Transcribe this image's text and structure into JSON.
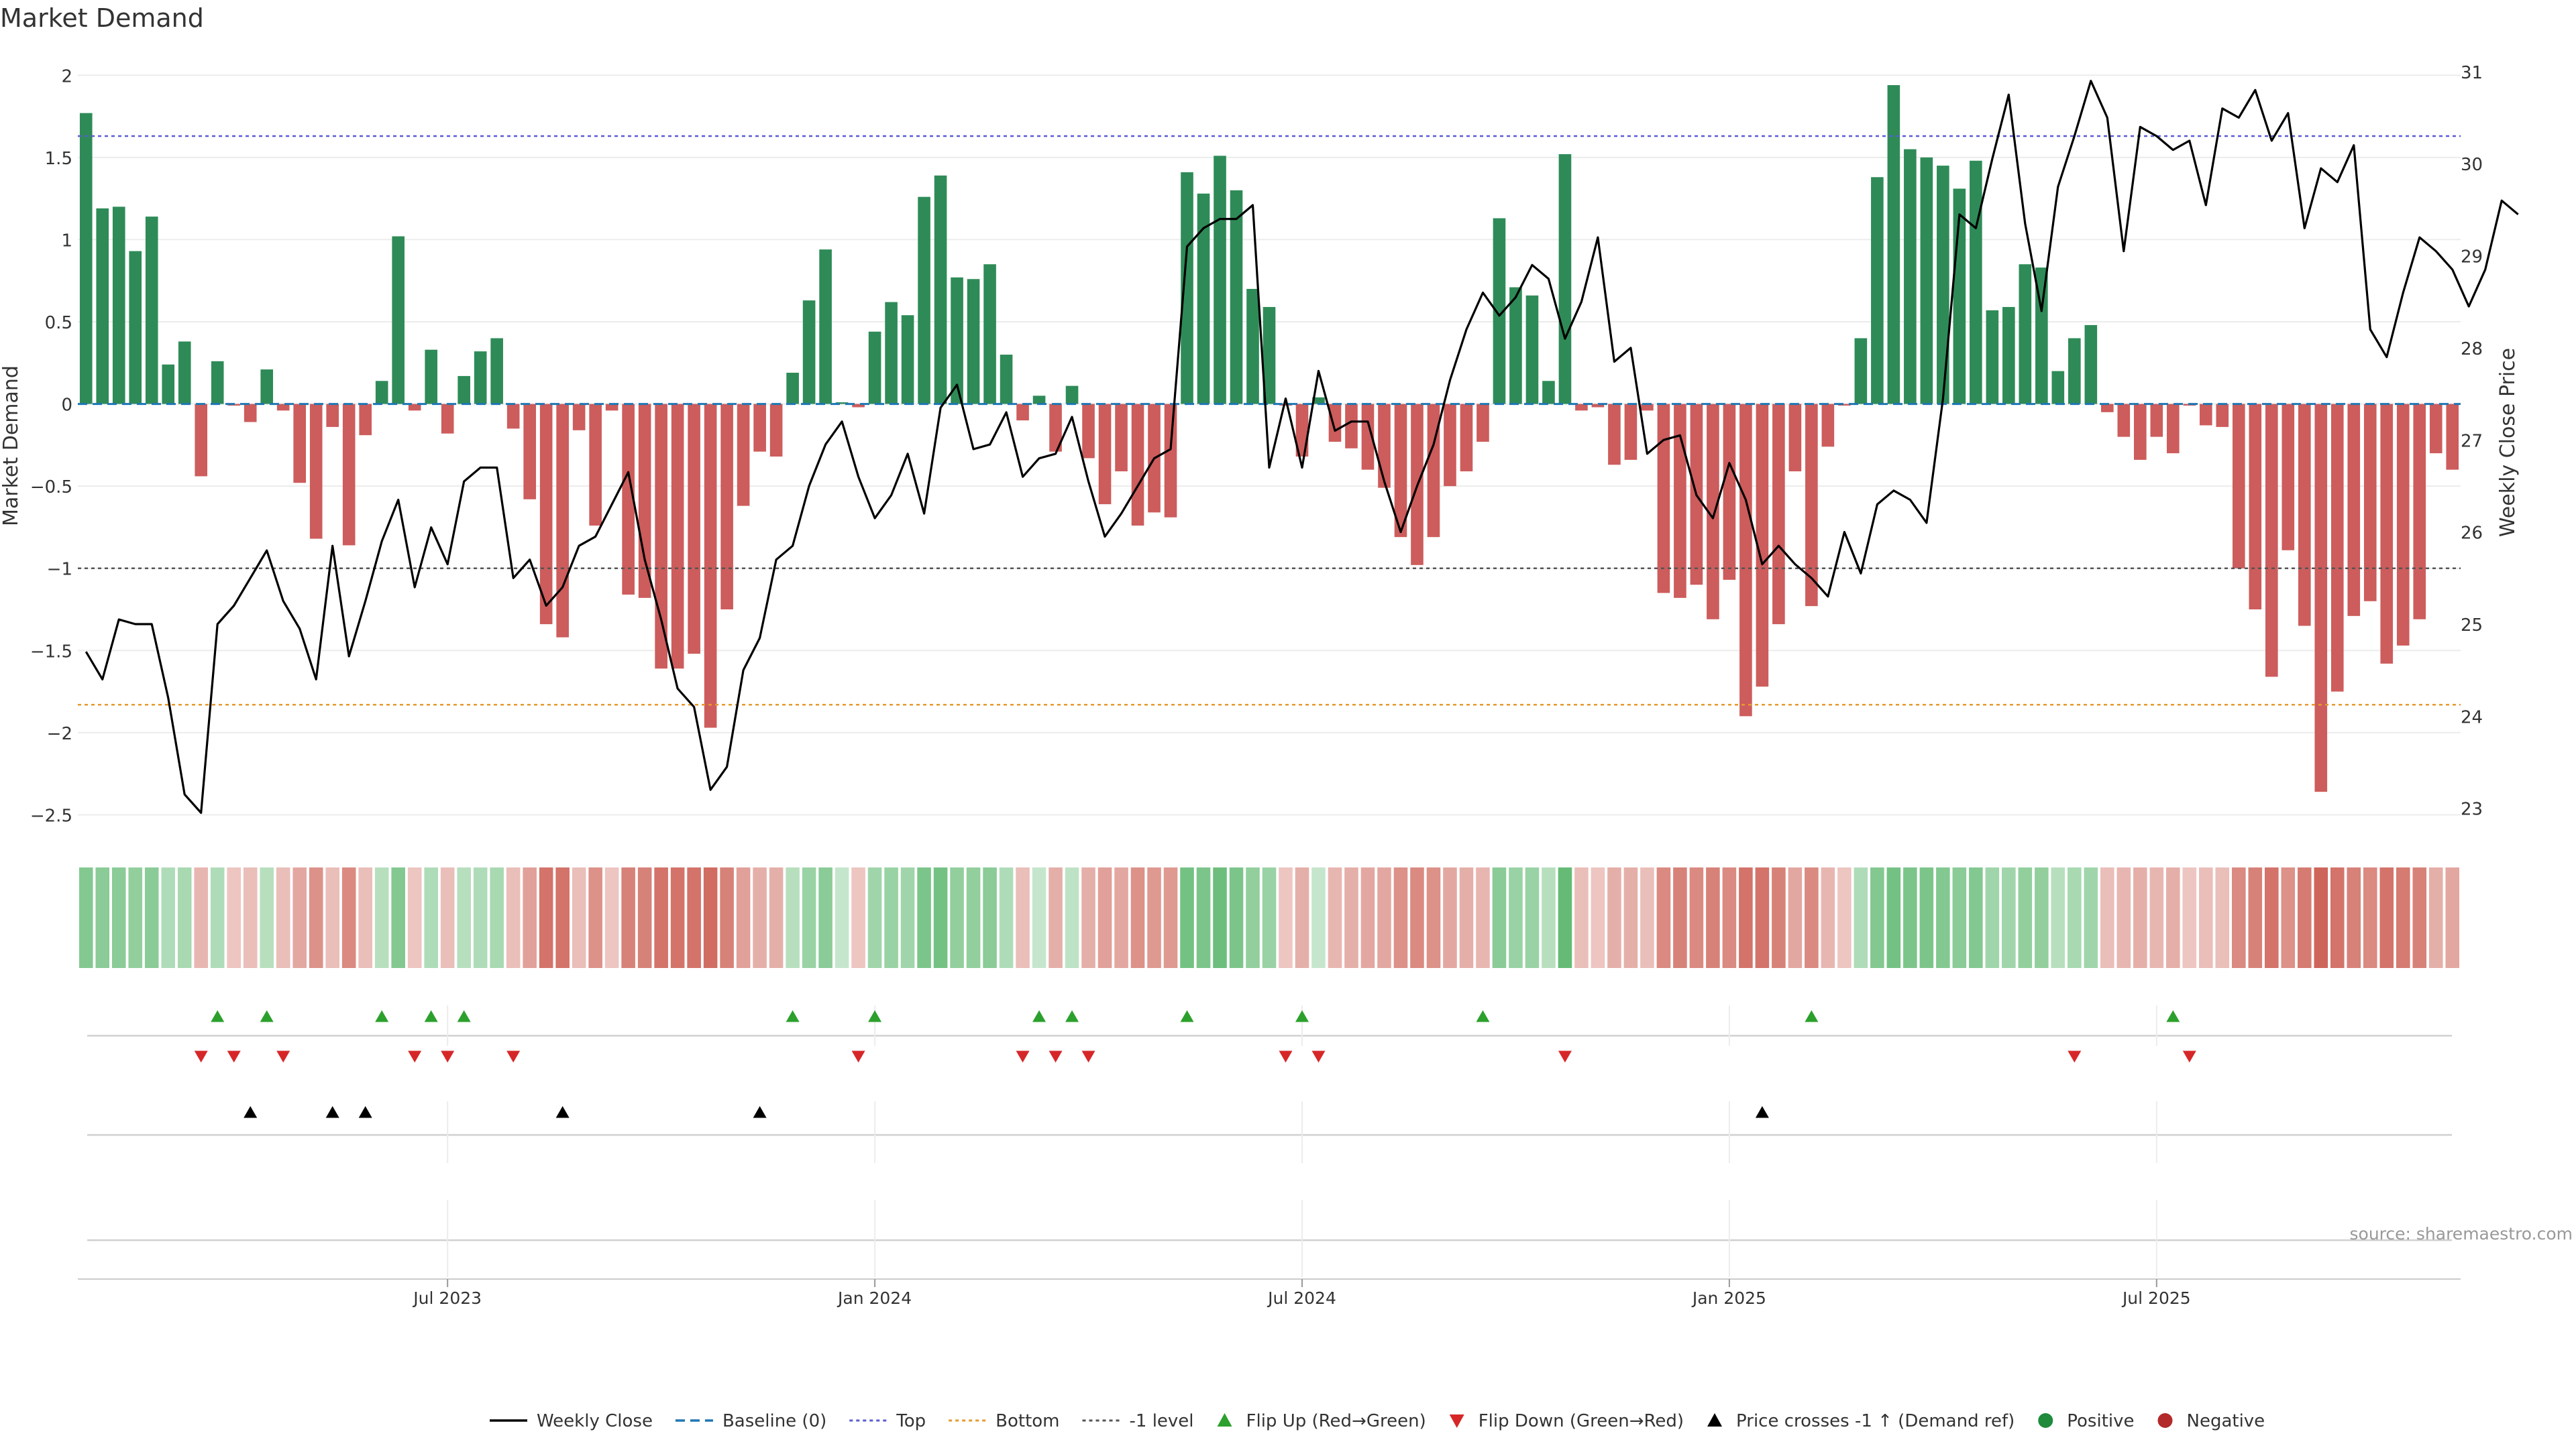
{
  "page": {
    "title": "Market Demand",
    "source": "source: sharemaestro.com"
  },
  "colors": {
    "positive": "#2e8b57",
    "negative": "#cd5c5c",
    "price_line": "#000000",
    "baseline": "#1f77b4",
    "top_line": "#5b5bd6",
    "bottom_line": "#e69a2e",
    "minus1_line": "#555555",
    "flip_up": "#2ca02c",
    "flip_down": "#d62728",
    "cross": "#000000",
    "grid": "#ececec",
    "axis": "#cccccc"
  },
  "chart_data": {
    "type": "bar",
    "title": "Market Demand",
    "ylabel": "Market Demand",
    "y2label": "Weekly Close Price",
    "ylim": [
      -2.6,
      2.05
    ],
    "y2lim": [
      22.75,
      31.05
    ],
    "yticks": [
      2,
      1.5,
      1,
      0.5,
      0,
      -0.5,
      -1,
      -1.5,
      -2,
      -2.5
    ],
    "ytick_labels": [
      "2",
      "1.5",
      "1",
      "0.5",
      "0",
      "−0.5",
      "−1",
      "−1.5",
      "−2",
      "−2.5"
    ],
    "y2ticks": [
      31,
      30,
      29,
      28,
      27,
      26,
      25,
      24,
      23
    ],
    "y2tick_labels": [
      "31",
      "30",
      "29",
      "28",
      "27",
      "26",
      "25",
      "24",
      "23"
    ],
    "x_tick_index": [
      22,
      48,
      74,
      100,
      126
    ],
    "x_tick_labels": [
      "Jul 2023",
      "Jan 2024",
      "Jul 2024",
      "Jan 2025",
      "Jul 2025"
    ],
    "reference_lines": {
      "baseline": 0,
      "top": 1.63,
      "bottom": -1.83,
      "minus1": -1.0
    },
    "demand": [
      1.77,
      1.19,
      1.2,
      0.93,
      1.14,
      0.24,
      0.38,
      -0.44,
      0.26,
      -0.01,
      -0.11,
      0.21,
      -0.04,
      -0.48,
      -0.82,
      -0.14,
      -0.86,
      -0.19,
      0.14,
      1.02,
      -0.04,
      0.33,
      -0.18,
      0.17,
      0.32,
      0.4,
      -0.15,
      -0.58,
      -1.34,
      -1.42,
      -0.16,
      -0.74,
      -0.04,
      -1.16,
      -1.18,
      -1.61,
      -1.61,
      -1.52,
      -1.97,
      -1.25,
      -0.62,
      -0.29,
      -0.32,
      0.19,
      0.63,
      0.94,
      0.01,
      -0.02,
      0.44,
      0.62,
      0.54,
      1.26,
      1.39,
      0.77,
      0.76,
      0.85,
      0.3,
      -0.1,
      0.05,
      -0.29,
      0.11,
      -0.33,
      -0.61,
      -0.41,
      -0.74,
      -0.66,
      -0.69,
      1.41,
      1.28,
      1.51,
      1.3,
      0.7,
      0.59,
      -0.01,
      -0.32,
      0.04,
      -0.23,
      -0.27,
      -0.4,
      -0.51,
      -0.81,
      -0.98,
      -0.81,
      -0.5,
      -0.41,
      -0.23,
      1.13,
      0.71,
      0.66,
      0.14,
      1.52,
      -0.04,
      -0.02,
      -0.37,
      -0.34,
      -0.04,
      -1.15,
      -1.18,
      -1.1,
      -1.31,
      -1.07,
      -1.9,
      -1.72,
      -1.34,
      -0.41,
      -1.23,
      -0.26,
      -0.01,
      0.4,
      1.38,
      1.94,
      1.55,
      1.5,
      1.45,
      1.31,
      1.48,
      0.57,
      0.59,
      0.85,
      0.83,
      0.2,
      0.4,
      0.48,
      -0.05,
      -0.2,
      -0.34,
      -0.2,
      -0.3,
      -0.01,
      -0.13,
      -0.14,
      -1.0,
      -1.25,
      -1.66,
      -0.89,
      -1.35,
      -2.36,
      -1.75,
      -1.29,
      -1.2,
      -1.58,
      -1.47,
      -1.31,
      -0.3,
      -0.4
    ],
    "price": [
      24.7,
      24.4,
      25.05,
      25.0,
      25.0,
      24.2,
      23.15,
      22.95,
      25.0,
      25.2,
      25.5,
      25.8,
      25.25,
      24.95,
      24.4,
      25.85,
      24.65,
      25.25,
      25.9,
      26.35,
      25.4,
      26.05,
      25.65,
      26.55,
      26.7,
      26.7,
      25.5,
      25.7,
      25.2,
      25.4,
      25.85,
      25.95,
      26.3,
      26.65,
      25.7,
      25.05,
      24.3,
      24.1,
      23.2,
      23.45,
      24.5,
      24.85,
      25.7,
      25.85,
      26.5,
      26.95,
      27.2,
      26.6,
      26.15,
      26.4,
      26.85,
      26.2,
      27.35,
      27.6,
      26.9,
      26.95,
      27.3,
      26.6,
      26.8,
      26.85,
      27.25,
      26.55,
      25.95,
      26.2,
      26.5,
      26.8,
      26.9,
      29.1,
      29.3,
      29.4,
      29.4,
      29.55,
      26.7,
      27.45,
      26.7,
      27.75,
      27.1,
      27.2,
      27.2,
      26.55,
      26.0,
      26.5,
      26.95,
      27.65,
      28.2,
      28.6,
      28.35,
      28.55,
      28.9,
      28.75,
      28.1,
      28.5,
      29.2,
      27.85,
      28.0,
      26.85,
      27.0,
      27.05,
      26.4,
      26.15,
      26.75,
      26.35,
      25.65,
      25.85,
      25.65,
      25.5,
      25.3,
      26.0,
      25.55,
      26.3,
      26.45,
      26.35,
      26.1,
      27.45,
      29.45,
      29.3,
      30.05,
      30.75,
      29.35,
      28.4,
      29.75,
      30.3,
      30.9,
      30.5,
      29.05,
      30.4,
      30.3,
      30.15,
      30.25,
      29.55,
      30.6,
      30.5,
      30.8,
      30.25,
      30.55,
      29.3,
      29.95,
      29.8,
      30.2,
      28.2,
      27.9,
      28.6,
      29.2,
      29.05,
      28.85,
      28.45,
      28.85,
      29.6,
      29.45
    ],
    "band_intensity": [
      0.6,
      0.55,
      0.55,
      0.5,
      0.55,
      0.3,
      0.35,
      -0.25,
      0.3,
      -0.15,
      -0.2,
      0.25,
      -0.2,
      -0.35,
      -0.5,
      -0.2,
      -0.55,
      -0.2,
      0.25,
      0.6,
      -0.15,
      0.3,
      -0.2,
      0.25,
      0.3,
      0.35,
      -0.2,
      -0.4,
      -0.7,
      -0.7,
      -0.2,
      -0.5,
      -0.15,
      -0.6,
      -0.6,
      -0.7,
      -0.7,
      -0.7,
      -0.75,
      -0.6,
      -0.4,
      -0.3,
      -0.3,
      0.25,
      0.45,
      0.55,
      0.15,
      -0.15,
      0.4,
      0.45,
      0.4,
      0.65,
      0.7,
      0.5,
      0.5,
      0.55,
      0.3,
      -0.2,
      0.15,
      -0.3,
      0.2,
      -0.3,
      -0.4,
      -0.35,
      -0.5,
      -0.45,
      -0.45,
      0.7,
      0.65,
      0.75,
      0.65,
      0.5,
      0.45,
      -0.15,
      -0.3,
      0.15,
      -0.25,
      -0.3,
      -0.35,
      -0.35,
      -0.5,
      -0.55,
      -0.5,
      -0.35,
      -0.3,
      -0.25,
      0.55,
      0.45,
      0.45,
      0.25,
      0.8,
      -0.2,
      -0.15,
      -0.3,
      -0.3,
      -0.2,
      -0.55,
      -0.6,
      -0.55,
      -0.6,
      -0.55,
      -0.7,
      -0.7,
      -0.6,
      -0.35,
      -0.55,
      -0.25,
      -0.15,
      0.3,
      0.6,
      0.7,
      0.65,
      0.65,
      0.6,
      0.55,
      0.6,
      0.4,
      0.4,
      0.5,
      0.5,
      0.25,
      0.35,
      0.4,
      -0.2,
      -0.25,
      -0.3,
      -0.25,
      -0.3,
      -0.15,
      -0.2,
      -0.2,
      -0.55,
      -0.6,
      -0.7,
      -0.5,
      -0.65,
      -0.8,
      -0.7,
      -0.6,
      -0.55,
      -0.7,
      -0.65,
      -0.6,
      -0.3,
      -0.35
    ],
    "flip_up_index": [
      8,
      11,
      18,
      21,
      23,
      43,
      48,
      58,
      60,
      67,
      74,
      85,
      105,
      127
    ],
    "flip_down_index": [
      7,
      9,
      12,
      20,
      22,
      26,
      47,
      57,
      59,
      61,
      73,
      75,
      90,
      121,
      128
    ],
    "cross_up_index": [
      10,
      15,
      17,
      29,
      41,
      102
    ]
  },
  "legend": [
    {
      "label": "Weekly Close",
      "marker": "line"
    },
    {
      "label": "Baseline (0)",
      "marker": "dash"
    },
    {
      "label": "Top",
      "marker": "dotted-blue"
    },
    {
      "label": "Bottom",
      "marker": "dotted-orange"
    },
    {
      "label": "-1 level",
      "marker": "dotted-grey"
    },
    {
      "label": "Flip Up (Red→Green)",
      "marker": "triangle-up-green"
    },
    {
      "label": "Flip Down (Green→Red)",
      "marker": "triangle-down-red"
    },
    {
      "label": "Price crosses -1 ↑ (Demand ref)",
      "marker": "triangle-up-black"
    },
    {
      "label": "Positive",
      "marker": "circle-green"
    },
    {
      "label": "Negative",
      "marker": "circle-red"
    }
  ]
}
